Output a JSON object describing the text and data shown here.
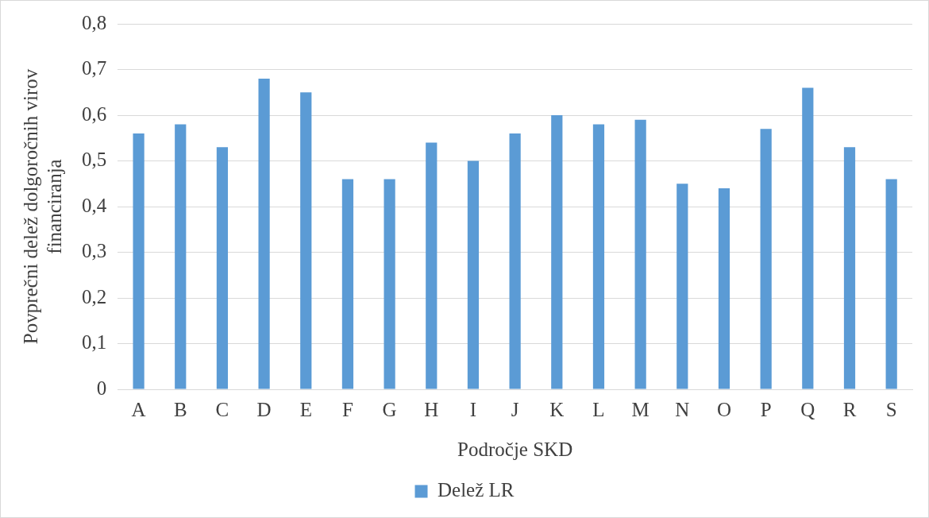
{
  "chart_data": {
    "type": "bar",
    "xlabel": "Področje SKD",
    "ylabel": "Povprečni delež dolgoročnih virov financiranja",
    "categories": [
      "A",
      "B",
      "C",
      "D",
      "E",
      "F",
      "G",
      "H",
      "I",
      "J",
      "K",
      "L",
      "M",
      "N",
      "O",
      "P",
      "Q",
      "R",
      "S"
    ],
    "series": [
      {
        "name": "Delež LR",
        "color": "#5b9bd5",
        "values": [
          0.56,
          0.58,
          0.53,
          0.68,
          0.65,
          0.46,
          0.46,
          0.54,
          0.5,
          0.56,
          0.6,
          0.58,
          0.59,
          0.45,
          0.44,
          0.57,
          0.66,
          0.53,
          0.46
        ]
      }
    ],
    "ylim": [
      0,
      0.8
    ],
    "yticks": [
      {
        "value": 0,
        "label": "0"
      },
      {
        "value": 0.1,
        "label": "0,1"
      },
      {
        "value": 0.2,
        "label": "0,2"
      },
      {
        "value": 0.3,
        "label": "0,3"
      },
      {
        "value": 0.4,
        "label": "0,4"
      },
      {
        "value": 0.5,
        "label": "0,5"
      },
      {
        "value": 0.6,
        "label": "0,6"
      },
      {
        "value": 0.7,
        "label": "0,7"
      },
      {
        "value": 0.8,
        "label": "0,8"
      }
    ],
    "grid": "y",
    "legend": "bottom"
  }
}
